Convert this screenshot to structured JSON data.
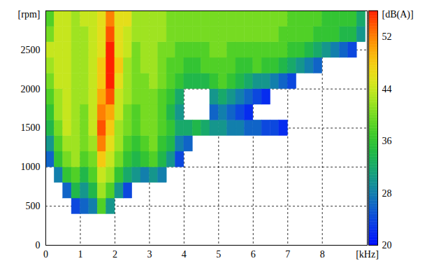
{
  "chart_data": {
    "type": "heatmap",
    "x_label": "[kHz]",
    "y_label": "[rpm]",
    "xlim": [
      0,
      9.3
    ],
    "xticks": [
      0,
      1,
      2,
      3,
      4,
      5,
      6,
      7,
      8
    ],
    "ylim": [
      0,
      3000
    ],
    "yticks": [
      0,
      500,
      1000,
      1500,
      2000,
      2500
    ],
    "grid": true,
    "x_edges": [
      0,
      0.25,
      0.5,
      0.75,
      1,
      1.25,
      1.5,
      1.75,
      2,
      2.25,
      2.5,
      2.75,
      3,
      3.25,
      3.5,
      3.75,
      4,
      4.25,
      4.5,
      4.75,
      5,
      5.25,
      5.5,
      5.75,
      6,
      6.25,
      6.5,
      6.75,
      7,
      7.25,
      7.5,
      7.75,
      8,
      8.25,
      8.5,
      8.75,
      9,
      9.25
    ],
    "y_edges": [
      400,
      600,
      800,
      1000,
      1200,
      1400,
      1600,
      1800,
      2000,
      2200,
      2400,
      2600,
      2800,
      3000
    ],
    "values": [
      [
        null,
        null,
        null,
        24,
        26,
        28,
        38,
        30,
        null,
        null,
        null,
        null,
        null,
        null,
        null,
        null,
        null,
        null,
        null,
        null,
        null,
        null,
        null,
        null,
        null,
        null,
        null,
        null,
        null,
        null,
        null,
        null,
        null,
        null,
        null,
        null,
        null
      ],
      [
        null,
        null,
        26,
        34,
        30,
        34,
        42,
        38,
        30,
        24,
        null,
        null,
        null,
        null,
        null,
        null,
        null,
        null,
        null,
        null,
        null,
        null,
        null,
        null,
        null,
        null,
        null,
        null,
        null,
        null,
        null,
        null,
        null,
        null,
        null,
        null,
        null
      ],
      [
        null,
        28,
        36,
        38,
        34,
        38,
        44,
        42,
        36,
        32,
        30,
        28,
        30,
        28,
        null,
        null,
        null,
        null,
        null,
        null,
        null,
        null,
        null,
        null,
        null,
        null,
        null,
        null,
        null,
        null,
        null,
        null,
        null,
        null,
        null,
        null,
        null
      ],
      [
        26,
        36,
        40,
        42,
        38,
        40,
        48,
        44,
        40,
        36,
        34,
        36,
        38,
        34,
        30,
        24,
        null,
        null,
        null,
        null,
        null,
        null,
        null,
        null,
        null,
        null,
        null,
        null,
        null,
        null,
        null,
        null,
        null,
        null,
        null,
        null,
        null
      ],
      [
        30,
        38,
        42,
        42,
        40,
        42,
        52,
        46,
        42,
        38,
        36,
        38,
        40,
        36,
        34,
        28,
        26,
        null,
        null,
        null,
        null,
        null,
        null,
        null,
        null,
        null,
        null,
        null,
        null,
        null,
        null,
        null,
        null,
        null,
        null,
        null,
        null
      ],
      [
        34,
        40,
        44,
        42,
        40,
        44,
        54,
        48,
        42,
        40,
        38,
        40,
        40,
        38,
        36,
        32,
        32,
        34,
        32,
        30,
        30,
        28,
        28,
        26,
        26,
        24,
        24,
        22,
        null,
        null,
        null,
        null,
        null,
        null,
        null,
        null,
        null
      ],
      [
        36,
        42,
        44,
        42,
        40,
        44,
        52,
        50,
        44,
        40,
        38,
        40,
        40,
        38,
        34,
        30,
        null,
        null,
        null,
        26,
        28,
        26,
        24,
        22,
        null,
        null,
        null,
        null,
        null,
        null,
        null,
        null,
        null,
        null,
        null,
        null,
        null
      ],
      [
        38,
        42,
        44,
        42,
        42,
        44,
        50,
        54,
        44,
        42,
        40,
        40,
        40,
        38,
        36,
        32,
        null,
        null,
        null,
        30,
        32,
        30,
        28,
        26,
        24,
        22,
        null,
        null,
        null,
        null,
        null,
        null,
        null,
        null,
        null,
        null,
        null
      ],
      [
        40,
        44,
        44,
        42,
        42,
        44,
        48,
        56,
        46,
        42,
        40,
        40,
        42,
        40,
        38,
        36,
        34,
        34,
        34,
        36,
        38,
        36,
        34,
        32,
        30,
        30,
        28,
        26,
        24,
        null,
        null,
        null,
        null,
        null,
        null,
        null,
        null
      ],
      [
        42,
        44,
        44,
        42,
        42,
        44,
        48,
        56,
        48,
        42,
        40,
        42,
        42,
        40,
        38,
        38,
        36,
        36,
        38,
        38,
        38,
        38,
        36,
        36,
        38,
        36,
        36,
        34,
        32,
        30,
        28,
        26,
        null,
        null,
        null,
        null,
        null
      ],
      [
        44,
        44,
        44,
        42,
        42,
        44,
        46,
        56,
        46,
        44,
        40,
        42,
        42,
        40,
        40,
        38,
        38,
        38,
        38,
        40,
        40,
        38,
        38,
        38,
        38,
        38,
        38,
        38,
        36,
        36,
        34,
        32,
        30,
        28,
        26,
        24,
        null
      ],
      [
        40,
        44,
        44,
        42,
        42,
        44,
        46,
        54,
        46,
        44,
        42,
        42,
        42,
        42,
        40,
        40,
        40,
        40,
        40,
        40,
        40,
        40,
        40,
        40,
        40,
        40,
        40,
        38,
        38,
        38,
        38,
        36,
        36,
        36,
        34,
        34,
        30
      ],
      [
        38,
        44,
        44,
        42,
        44,
        44,
        46,
        52,
        46,
        46,
        42,
        42,
        42,
        42,
        40,
        40,
        40,
        40,
        40,
        40,
        40,
        40,
        40,
        40,
        40,
        40,
        40,
        40,
        38,
        38,
        38,
        38,
        36,
        36,
        36,
        36,
        32
      ]
    ],
    "color_label": "[dB(A)]",
    "color_range": [
      20,
      56
    ],
    "color_ticks": [
      20,
      28,
      36,
      44,
      52
    ]
  }
}
